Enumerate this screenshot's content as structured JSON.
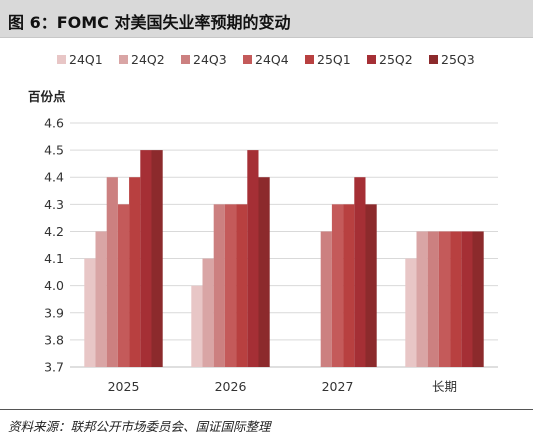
{
  "header": {
    "title": "图 6：FOMC 对美国失业率预期的变动"
  },
  "footer": {
    "source": "资料来源：联邦公开市场委员会、国证国际整理"
  },
  "chart_data": {
    "type": "bar",
    "title": "",
    "ylabel": "百份点",
    "xlabel": "",
    "categories": [
      "2025",
      "2026",
      "2027",
      "长期"
    ],
    "ylim": [
      3.7,
      4.6
    ],
    "yticks": [
      "3.7",
      "3.8",
      "3.9",
      "4.0",
      "4.1",
      "4.2",
      "4.3",
      "4.4",
      "4.5",
      "4.6"
    ],
    "grid": true,
    "legend_position": "top",
    "series": [
      {
        "name": "24Q1",
        "color": "#e8c6c6",
        "values": [
          4.1,
          4.0,
          null,
          4.1
        ]
      },
      {
        "name": "24Q2",
        "color": "#d9a5a5",
        "values": [
          4.2,
          4.1,
          null,
          4.2
        ]
      },
      {
        "name": "24Q3",
        "color": "#cc8080",
        "values": [
          4.4,
          4.3,
          4.2,
          4.2
        ]
      },
      {
        "name": "24Q4",
        "color": "#c45a5a",
        "values": [
          4.3,
          4.3,
          4.3,
          4.2
        ]
      },
      {
        "name": "25Q1",
        "color": "#b84040",
        "values": [
          4.4,
          4.3,
          4.3,
          4.2
        ]
      },
      {
        "name": "25Q2",
        "color": "#a52f35",
        "values": [
          4.5,
          4.5,
          4.4,
          4.2
        ]
      },
      {
        "name": "25Q3",
        "color": "#8c2a2c",
        "values": [
          4.5,
          4.4,
          4.3,
          4.2
        ]
      }
    ]
  }
}
